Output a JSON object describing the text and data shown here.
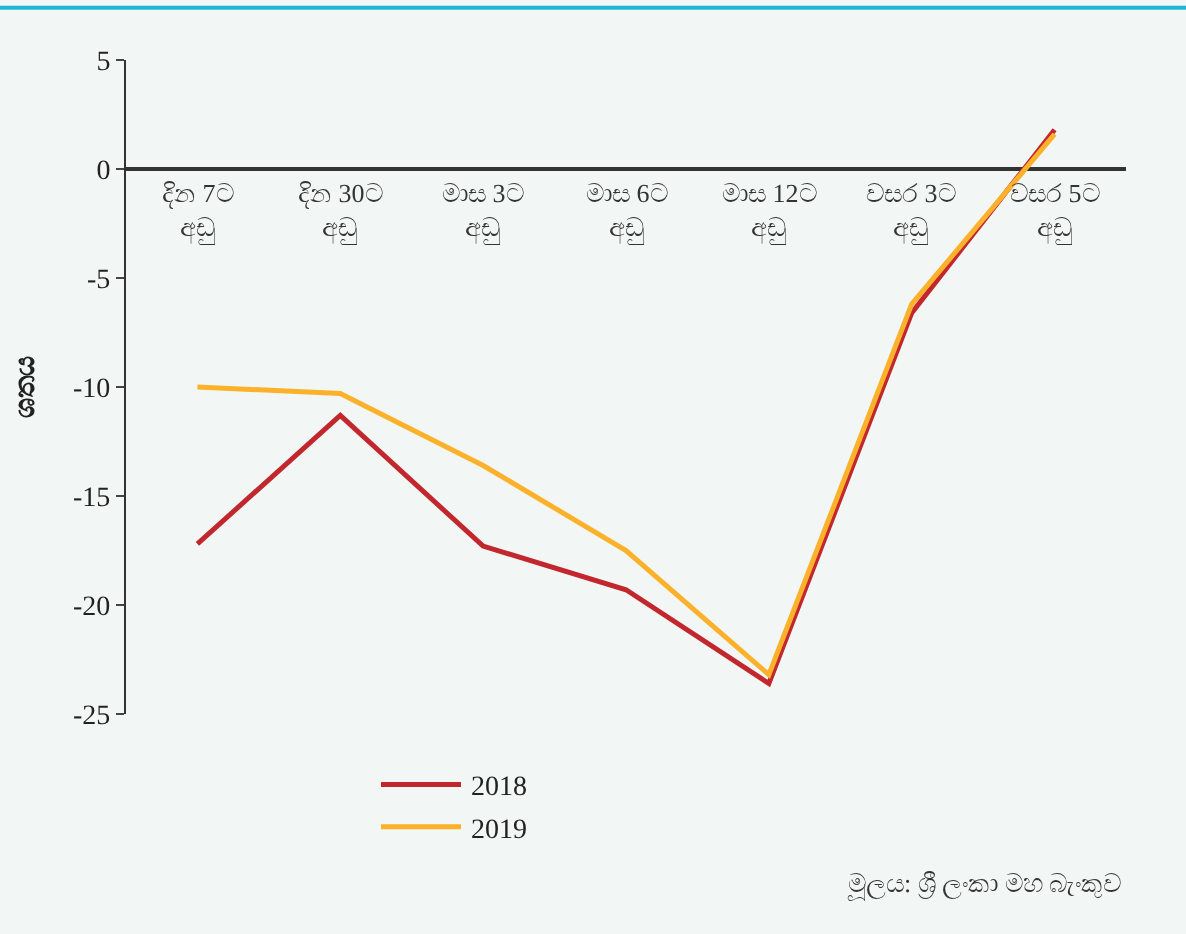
{
  "chart_data": {
    "type": "line",
    "ylabel": "ශතය",
    "categories": [
      "දින 7ට\nඅඩු",
      "දින 30ට\nඅඩු",
      "මාස 3ට\nඅඩු",
      "මාස 6ට\nඅඩු",
      "මාස 12ට\nඅඩු",
      "වසර 3ට\nඅඩු",
      "වසර 5ට\nඅඩු"
    ],
    "series": [
      {
        "name": "2018",
        "color": "#c1272d",
        "values": [
          -17.2,
          -11.3,
          -17.3,
          -19.3,
          -23.6,
          -6.6,
          1.8
        ]
      },
      {
        "name": "2019",
        "color": "#fbb12a",
        "values": [
          -10.0,
          -10.3,
          -13.6,
          -17.5,
          -23.2,
          -6.2,
          1.6
        ]
      }
    ],
    "ylim": [
      -25,
      5
    ],
    "yticks": [
      -25,
      -20,
      -15,
      -10,
      -5,
      0,
      5
    ],
    "grid": false,
    "legend": "bottom",
    "marker": "none",
    "line_style": "solid",
    "annotations": [
      "මූලය: ශ්‍රී ලංකා මහ බැංකුව"
    ]
  }
}
